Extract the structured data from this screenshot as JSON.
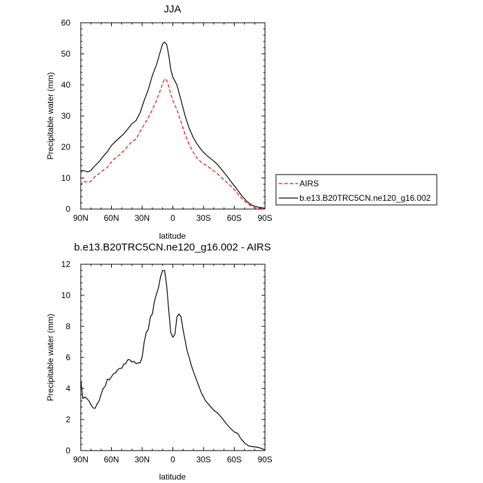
{
  "chart_data": [
    {
      "type": "line",
      "title": "JJA",
      "xlabel": "latitude",
      "ylabel": "Precipitable water (mm)",
      "xlim": [
        90,
        -90
      ],
      "ylim": [
        0,
        60
      ],
      "x_ticks": [
        90,
        60,
        30,
        0,
        -30,
        -60,
        -90
      ],
      "x_tick_labels": [
        "90N",
        "60N",
        "30N",
        "0",
        "30S",
        "60S",
        "90S"
      ],
      "y_ticks": [
        0,
        10,
        20,
        30,
        40,
        50,
        60
      ],
      "y_tick_labels": [
        "0",
        "10",
        "20",
        "30",
        "40",
        "50",
        "60"
      ],
      "legend": {
        "placement": "right",
        "entries": [
          "AIRS",
          "b.e13.B20TRC5CN.ne120_g16.002"
        ]
      },
      "series": [
        {
          "name": "AIRS",
          "color": "#ff0000",
          "style": "dashed",
          "x": [
            90,
            88,
            86,
            84,
            82,
            80,
            76,
            72,
            68,
            64,
            60,
            56,
            52,
            48,
            44,
            40,
            36,
            32,
            28,
            24,
            20,
            16,
            12,
            10,
            8,
            6,
            4,
            2,
            0,
            -4,
            -8,
            -12,
            -16,
            -20,
            -24,
            -28,
            -32,
            -36,
            -40,
            -44,
            -48,
            -52,
            -56,
            -60,
            -64,
            -68,
            -72,
            -76,
            -80,
            -84,
            -88,
            -90
          ],
          "y": [
            7.5,
            8.8,
            8.8,
            8.7,
            8.6,
            9.0,
            10.5,
            11.5,
            12.5,
            13.5,
            15.2,
            16.5,
            17.5,
            18.8,
            20.2,
            21.8,
            22.5,
            25.0,
            27.2,
            29.5,
            32.0,
            35.0,
            38.5,
            40.5,
            42.0,
            41.5,
            39.5,
            37.0,
            35.0,
            32.0,
            28.0,
            24.0,
            20.8,
            18.2,
            16.3,
            15.0,
            14.2,
            13.3,
            12.3,
            11.2,
            10.0,
            8.8,
            7.6,
            6.3,
            4.7,
            3.2,
            2.0,
            1.1,
            0.5,
            0.3,
            0.1,
            0.0
          ]
        },
        {
          "name": "b.e13.B20TRC5CN.ne120_g16.002",
          "color": "#000000",
          "style": "solid",
          "x": [
            90,
            88,
            86,
            84,
            82,
            80,
            76,
            72,
            68,
            64,
            60,
            56,
            52,
            48,
            44,
            40,
            36,
            32,
            28,
            24,
            20,
            16,
            12,
            10,
            8,
            6,
            4,
            2,
            0,
            -4,
            -8,
            -12,
            -16,
            -20,
            -24,
            -28,
            -32,
            -36,
            -40,
            -44,
            -48,
            -52,
            -56,
            -60,
            -64,
            -68,
            -72,
            -76,
            -80,
            -84,
            -88,
            -90
          ],
          "y": [
            12.3,
            12.4,
            12.3,
            12.0,
            12.1,
            12.5,
            14.0,
            15.3,
            17.0,
            18.5,
            20.5,
            21.8,
            23.0,
            24.2,
            25.8,
            27.5,
            28.5,
            31.0,
            35.0,
            38.5,
            43.0,
            46.5,
            51.0,
            53.2,
            53.8,
            53.0,
            49.5,
            45.0,
            42.5,
            40.0,
            35.0,
            30.0,
            26.0,
            23.0,
            20.8,
            19.0,
            17.6,
            16.5,
            15.5,
            14.2,
            12.6,
            11.0,
            9.2,
            7.5,
            5.8,
            4.0,
            2.6,
            1.5,
            0.9,
            0.6,
            0.4,
            0.2
          ]
        }
      ]
    },
    {
      "type": "line",
      "title": "b.e13.B20TRC5CN.ne120_g16.002 - AIRS",
      "xlabel": "latitude",
      "ylabel": "Precipitable water (mm)",
      "xlim": [
        90,
        -90
      ],
      "ylim": [
        0,
        12
      ],
      "x_ticks": [
        90,
        60,
        30,
        0,
        -30,
        -60,
        -90
      ],
      "x_tick_labels": [
        "90N",
        "60N",
        "30N",
        "0",
        "30S",
        "60S",
        "90S"
      ],
      "y_ticks": [
        0,
        2,
        4,
        6,
        8,
        10,
        12
      ],
      "y_tick_labels": [
        "0",
        "2",
        "4",
        "6",
        "8",
        "10",
        "12"
      ],
      "series": [
        {
          "name": "b.e13.B20TRC5CN.ne120_g16.002 - AIRS",
          "color": "#000000",
          "style": "solid",
          "x": [
            90,
            88,
            86,
            84,
            82,
            80,
            78,
            76,
            74,
            72,
            70,
            68,
            66,
            64,
            62,
            60,
            58,
            56,
            54,
            52,
            50,
            48,
            46,
            44,
            42,
            40,
            38,
            36,
            34,
            32,
            30,
            28,
            26,
            24,
            22,
            20,
            18,
            16,
            14,
            12,
            10,
            8,
            6,
            4,
            2,
            0,
            -2,
            -4,
            -6,
            -8,
            -10,
            -12,
            -14,
            -16,
            -18,
            -20,
            -24,
            -28,
            -32,
            -36,
            -40,
            -44,
            -48,
            -52,
            -56,
            -60,
            -62,
            -64,
            -66,
            -70,
            -74,
            -78,
            -82,
            -86,
            -88,
            -90
          ],
          "y": [
            4.55,
            3.35,
            3.45,
            3.35,
            3.2,
            2.95,
            2.75,
            2.72,
            3.0,
            3.2,
            3.65,
            4.0,
            4.15,
            4.6,
            4.55,
            4.75,
            4.95,
            5.0,
            5.2,
            5.3,
            5.3,
            5.55,
            5.6,
            5.85,
            5.85,
            5.7,
            5.75,
            5.6,
            5.65,
            5.65,
            6.0,
            7.0,
            7.6,
            7.8,
            8.6,
            8.8,
            9.6,
            10.1,
            10.5,
            11.2,
            11.6,
            11.6,
            10.6,
            9.0,
            7.6,
            7.3,
            7.5,
            8.6,
            8.8,
            8.6,
            7.8,
            7.1,
            6.4,
            6.0,
            5.5,
            5.1,
            4.4,
            3.7,
            3.2,
            2.9,
            2.6,
            2.4,
            2.1,
            1.75,
            1.45,
            1.2,
            1.15,
            1.05,
            0.8,
            0.5,
            0.3,
            0.25,
            0.22,
            0.15,
            0.1,
            0.05
          ]
        }
      ]
    }
  ]
}
